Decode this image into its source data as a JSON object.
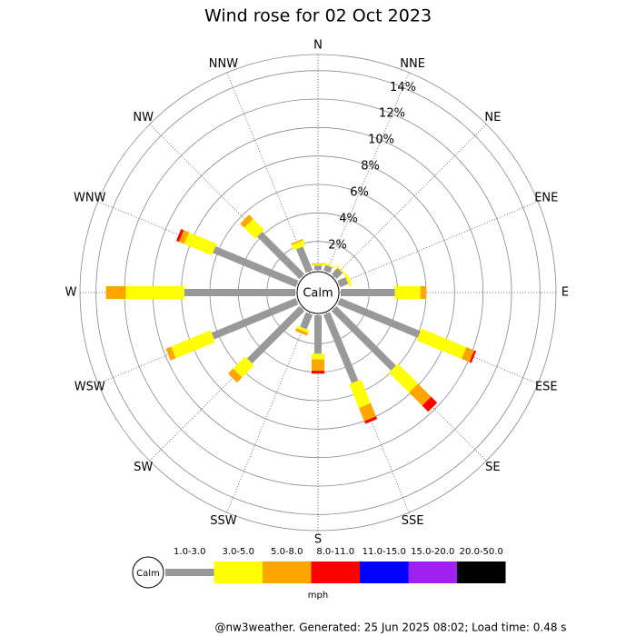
{
  "chart_data": {
    "type": "wind_rose",
    "title": "Wind rose for 02 Oct 2023",
    "directions": [
      "N",
      "NNE",
      "NE",
      "ENE",
      "E",
      "ESE",
      "SE",
      "SSE",
      "S",
      "SSW",
      "SW",
      "WSW",
      "W",
      "WNW",
      "NW",
      "NNW"
    ],
    "calm_label": "Calm",
    "rlim": [
      0,
      15
    ],
    "rticks": [
      {
        "value": 2,
        "label": "2%"
      },
      {
        "value": 4,
        "label": "4%"
      },
      {
        "value": 6,
        "label": "6%"
      },
      {
        "value": 8,
        "label": "8%"
      },
      {
        "value": 10,
        "label": "10%"
      },
      {
        "value": 12,
        "label": "12%"
      },
      {
        "value": 14,
        "label": "14%"
      }
    ],
    "series": [
      {
        "name": "1.0-3.0",
        "color": "#999999",
        "values": [
          0.3,
          0.4,
          0.6,
          0.6,
          3.8,
          6.1,
          5.9,
          5.2,
          2.7,
          1.1,
          5.2,
          6.4,
          7.8,
          6.3,
          4.2,
          1.8
        ]
      },
      {
        "name": "3.0-5.0",
        "color": "#ffff00",
        "values": [
          0.1,
          0.1,
          0.1,
          0.2,
          1.8,
          3.4,
          2.0,
          1.8,
          0.4,
          0.2,
          1.2,
          3.0,
          4.1,
          2.1,
          1.1,
          0.4
        ]
      },
      {
        "name": "5.0-8.0",
        "color": "#ffa500",
        "values": [
          0.05,
          0,
          0,
          0,
          0.4,
          0.6,
          1.3,
          1.0,
          0.8,
          0.2,
          0.5,
          0.4,
          1.4,
          0.4,
          0.4,
          0.1
        ]
      },
      {
        "name": "8.0-11.0",
        "color": "#ff0000",
        "values": [
          0,
          0,
          0,
          0,
          0,
          0.15,
          0.6,
          0.2,
          0.2,
          0,
          0,
          0,
          0,
          0.2,
          0,
          0
        ]
      },
      {
        "name": "11.0-15.0",
        "color": "#0000ff",
        "values": [
          0,
          0,
          0,
          0,
          0,
          0,
          0,
          0,
          0,
          0,
          0,
          0,
          0,
          0,
          0,
          0
        ]
      },
      {
        "name": "15.0-20.0",
        "color": "#a020f0",
        "values": [
          0,
          0,
          0,
          0,
          0,
          0,
          0,
          0,
          0,
          0,
          0,
          0,
          0,
          0,
          0,
          0
        ]
      },
      {
        "name": "20.0-50.0",
        "color": "#000000",
        "values": [
          0,
          0,
          0,
          0,
          0,
          0,
          0,
          0,
          0,
          0,
          0,
          0,
          0,
          0,
          0,
          0
        ]
      }
    ],
    "unit": "mph",
    "footer": "@nw3weather. Generated: 25 Jun 2025 08:02; Load time: 0.48 s"
  }
}
